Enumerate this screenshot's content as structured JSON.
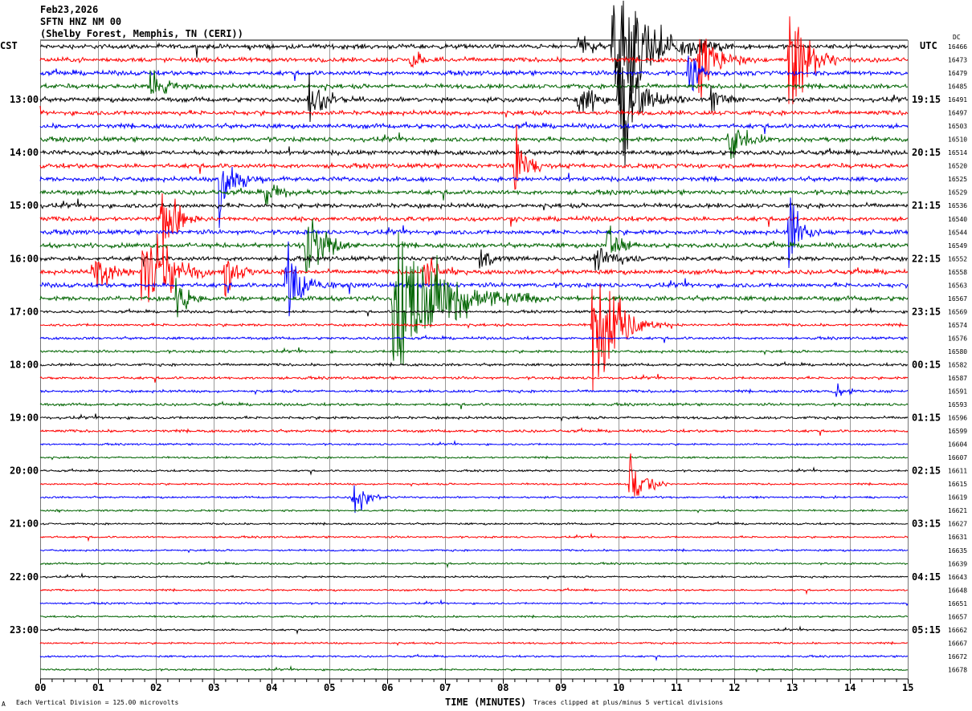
{
  "header": {
    "date": "Feb23,2026",
    "station": "SFTN HNZ NM 00",
    "location": "(Shelby Forest, Memphis, TN (CERI))",
    "left_zone": "CST",
    "right_zone": "UTC",
    "dc_label": "DC"
  },
  "footer": {
    "scale_note": "Each Vertical Division =  125.00 microvolts",
    "xlabel": "TIME (MINUTES)",
    "clip_note": "Traces clipped at plus/minus 5 vertical divisions",
    "corner_mark": "A"
  },
  "chart_data": {
    "type": "line",
    "subtype": "helicorder",
    "xlabel": "TIME (MINUTES)",
    "xlim": [
      0,
      15
    ],
    "x_ticks": [
      "00",
      "01",
      "02",
      "03",
      "04",
      "05",
      "06",
      "07",
      "08",
      "09",
      "10",
      "11",
      "12",
      "13",
      "14",
      "15"
    ],
    "grid": true,
    "trace_colors": [
      "#000000",
      "#ff0000",
      "#0000ff",
      "#006400"
    ],
    "rows_per_hour": 4,
    "clip_divisions": 5,
    "left_labels": [
      {
        "row": 4,
        "text": "13:00"
      },
      {
        "row": 8,
        "text": "14:00"
      },
      {
        "row": 12,
        "text": "15:00"
      },
      {
        "row": 16,
        "text": "16:00"
      },
      {
        "row": 20,
        "text": "17:00"
      },
      {
        "row": 24,
        "text": "18:00"
      },
      {
        "row": 28,
        "text": "19:00"
      },
      {
        "row": 32,
        "text": "20:00"
      },
      {
        "row": 36,
        "text": "21:00"
      },
      {
        "row": 40,
        "text": "22:00"
      },
      {
        "row": 44,
        "text": "23:00"
      }
    ],
    "right_labels": [
      {
        "row": 4,
        "text": "19:15"
      },
      {
        "row": 8,
        "text": "20:15"
      },
      {
        "row": 12,
        "text": "21:15"
      },
      {
        "row": 16,
        "text": "22:15"
      },
      {
        "row": 20,
        "text": "23:15"
      },
      {
        "row": 24,
        "text": "00:15"
      },
      {
        "row": 28,
        "text": "01:15"
      },
      {
        "row": 32,
        "text": "02:15"
      },
      {
        "row": 36,
        "text": "03:15"
      },
      {
        "row": 40,
        "text": "04:15"
      },
      {
        "row": 44,
        "text": "05:15"
      }
    ],
    "dc_values": [
      "16466",
      "16473",
      "16479",
      "16485",
      "16491",
      "16497",
      "16503",
      "16510",
      "16514",
      "16520",
      "16525",
      "16529",
      "16536",
      "16540",
      "16544",
      "16549",
      "16552",
      "16558",
      "16563",
      "16567",
      "16569",
      "16574",
      "16576",
      "16580",
      "16582",
      "16587",
      "16591",
      "16593",
      "16596",
      "16599",
      "16604",
      "16607",
      "16611",
      "16615",
      "16619",
      "16621",
      "16627",
      "16631",
      "16635",
      "16639",
      "16643",
      "16648",
      "16651",
      "16657",
      "16662",
      "16667",
      "16672",
      "16678"
    ],
    "events": [
      {
        "row": 0,
        "minute": 9.9,
        "amp": 5,
        "dur": 0.6
      },
      {
        "row": 0,
        "minute": 9.3,
        "amp": 0.8,
        "dur": 0.3
      },
      {
        "row": 1,
        "minute": 11.4,
        "amp": 3,
        "dur": 0.3
      },
      {
        "row": 1,
        "minute": 12.95,
        "amp": 4,
        "dur": 0.3
      },
      {
        "row": 1,
        "minute": 6.4,
        "amp": 0.8,
        "dur": 0.2
      },
      {
        "row": 2,
        "minute": 11.2,
        "amp": 1.5,
        "dur": 0.2
      },
      {
        "row": 3,
        "minute": 1.9,
        "amp": 1.5,
        "dur": 0.2
      },
      {
        "row": 4,
        "minute": 4.65,
        "amp": 2,
        "dur": 0.25
      },
      {
        "row": 4,
        "minute": 9.3,
        "amp": 1.5,
        "dur": 0.25
      },
      {
        "row": 4,
        "minute": 10.0,
        "amp": 5,
        "dur": 0.3
      },
      {
        "row": 4,
        "minute": 11.6,
        "amp": 1,
        "dur": 0.2
      },
      {
        "row": 7,
        "minute": 11.9,
        "amp": 1.5,
        "dur": 0.3
      },
      {
        "row": 9,
        "minute": 8.2,
        "amp": 2.5,
        "dur": 0.2
      },
      {
        "row": 10,
        "minute": 3.1,
        "amp": 2.5,
        "dur": 0.25
      },
      {
        "row": 11,
        "minute": 3.9,
        "amp": 1,
        "dur": 0.2
      },
      {
        "row": 13,
        "minute": 2.1,
        "amp": 3,
        "dur": 0.2
      },
      {
        "row": 14,
        "minute": 12.95,
        "amp": 3,
        "dur": 0.2
      },
      {
        "row": 15,
        "minute": 4.6,
        "amp": 3,
        "dur": 0.25
      },
      {
        "row": 15,
        "minute": 9.8,
        "amp": 1.5,
        "dur": 0.2
      },
      {
        "row": 16,
        "minute": 7.6,
        "amp": 1,
        "dur": 0.2
      },
      {
        "row": 16,
        "minute": 9.6,
        "amp": 1,
        "dur": 0.3
      },
      {
        "row": 17,
        "minute": 0.9,
        "amp": 1.5,
        "dur": 0.3
      },
      {
        "row": 17,
        "minute": 1.75,
        "amp": 5,
        "dur": 0.35
      },
      {
        "row": 17,
        "minute": 3.2,
        "amp": 2,
        "dur": 0.2
      },
      {
        "row": 17,
        "minute": 6.65,
        "amp": 2,
        "dur": 0.2
      },
      {
        "row": 18,
        "minute": 4.25,
        "amp": 2.5,
        "dur": 0.25
      },
      {
        "row": 19,
        "minute": 2.35,
        "amp": 1.5,
        "dur": 0.2
      },
      {
        "row": 19,
        "minute": 6.1,
        "amp": 5,
        "dur": 0.8
      },
      {
        "row": 21,
        "minute": 9.55,
        "amp": 5,
        "dur": 0.35
      },
      {
        "row": 26,
        "minute": 13.7,
        "amp": 0.4,
        "dur": 0.3
      },
      {
        "row": 33,
        "minute": 10.2,
        "amp": 2.5,
        "dur": 0.2
      },
      {
        "row": 34,
        "minute": 5.4,
        "amp": 1.5,
        "dur": 0.2
      }
    ]
  }
}
